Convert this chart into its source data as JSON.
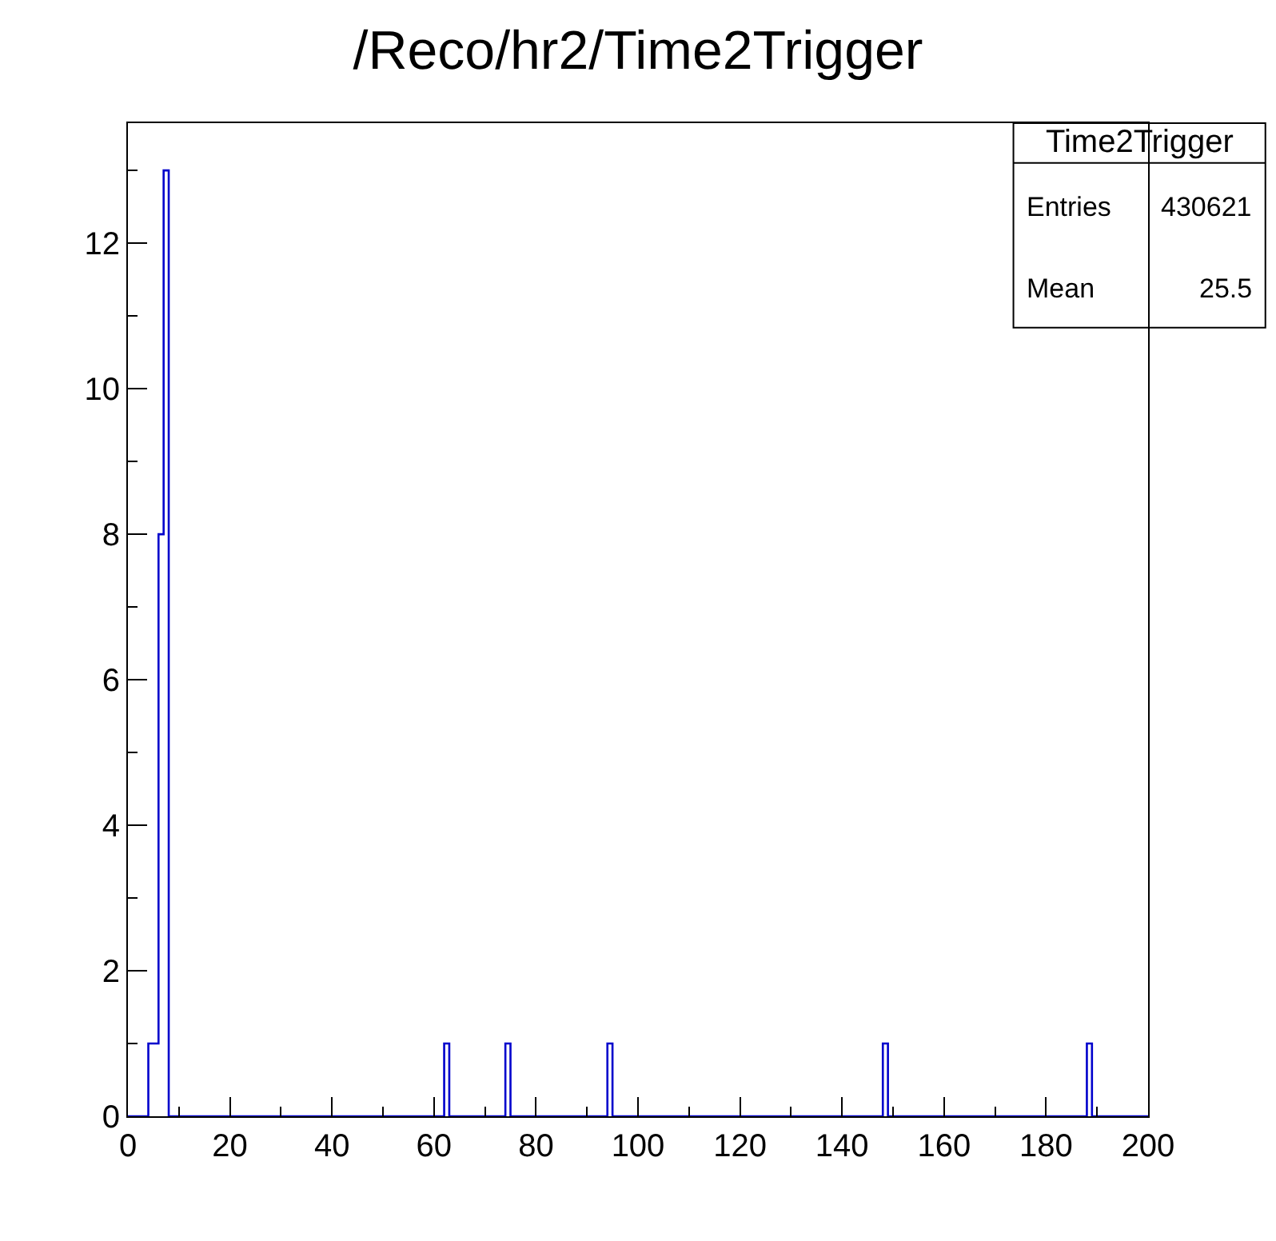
{
  "chart_data": {
    "type": "histogram",
    "title": "/Reco/hr2/Time2Trigger",
    "bins": [
      0,
      4,
      6,
      7,
      8,
      62,
      63,
      74,
      75,
      94,
      95,
      148,
      149,
      188,
      189,
      200
    ],
    "values": [
      0,
      1,
      8,
      13,
      0,
      1,
      0,
      1,
      0,
      1,
      0,
      1,
      0,
      1,
      0
    ],
    "color": "#0000cc",
    "xlim": [
      0,
      200
    ],
    "xticks": [
      0,
      20,
      40,
      60,
      80,
      100,
      120,
      140,
      160,
      180,
      200
    ],
    "ylim": [
      0,
      13.65
    ],
    "yticks": [
      0,
      2,
      4,
      6,
      8,
      10,
      12
    ],
    "annotations": [
      "Time2Trigger",
      "Entries",
      "430621",
      "Mean",
      "25.5"
    ]
  }
}
